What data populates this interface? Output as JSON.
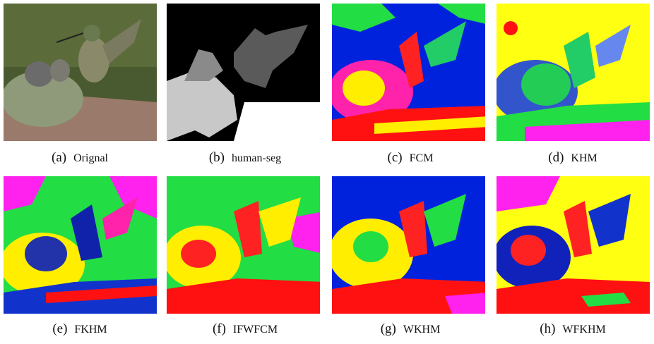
{
  "figure": {
    "panels": [
      {
        "tag": "(a)",
        "caption": "Orignal"
      },
      {
        "tag": "(b)",
        "caption": "human-seg"
      },
      {
        "tag": "(c)",
        "caption": "FCM"
      },
      {
        "tag": "(d)",
        "caption": "KHM"
      },
      {
        "tag": "(e)",
        "caption": "FKHM"
      },
      {
        "tag": "(f)",
        "caption": "IFWFCM"
      },
      {
        "tag": "(g)",
        "caption": "WKHM"
      },
      {
        "tag": "(h)",
        "caption": "WFKHM"
      }
    ]
  }
}
